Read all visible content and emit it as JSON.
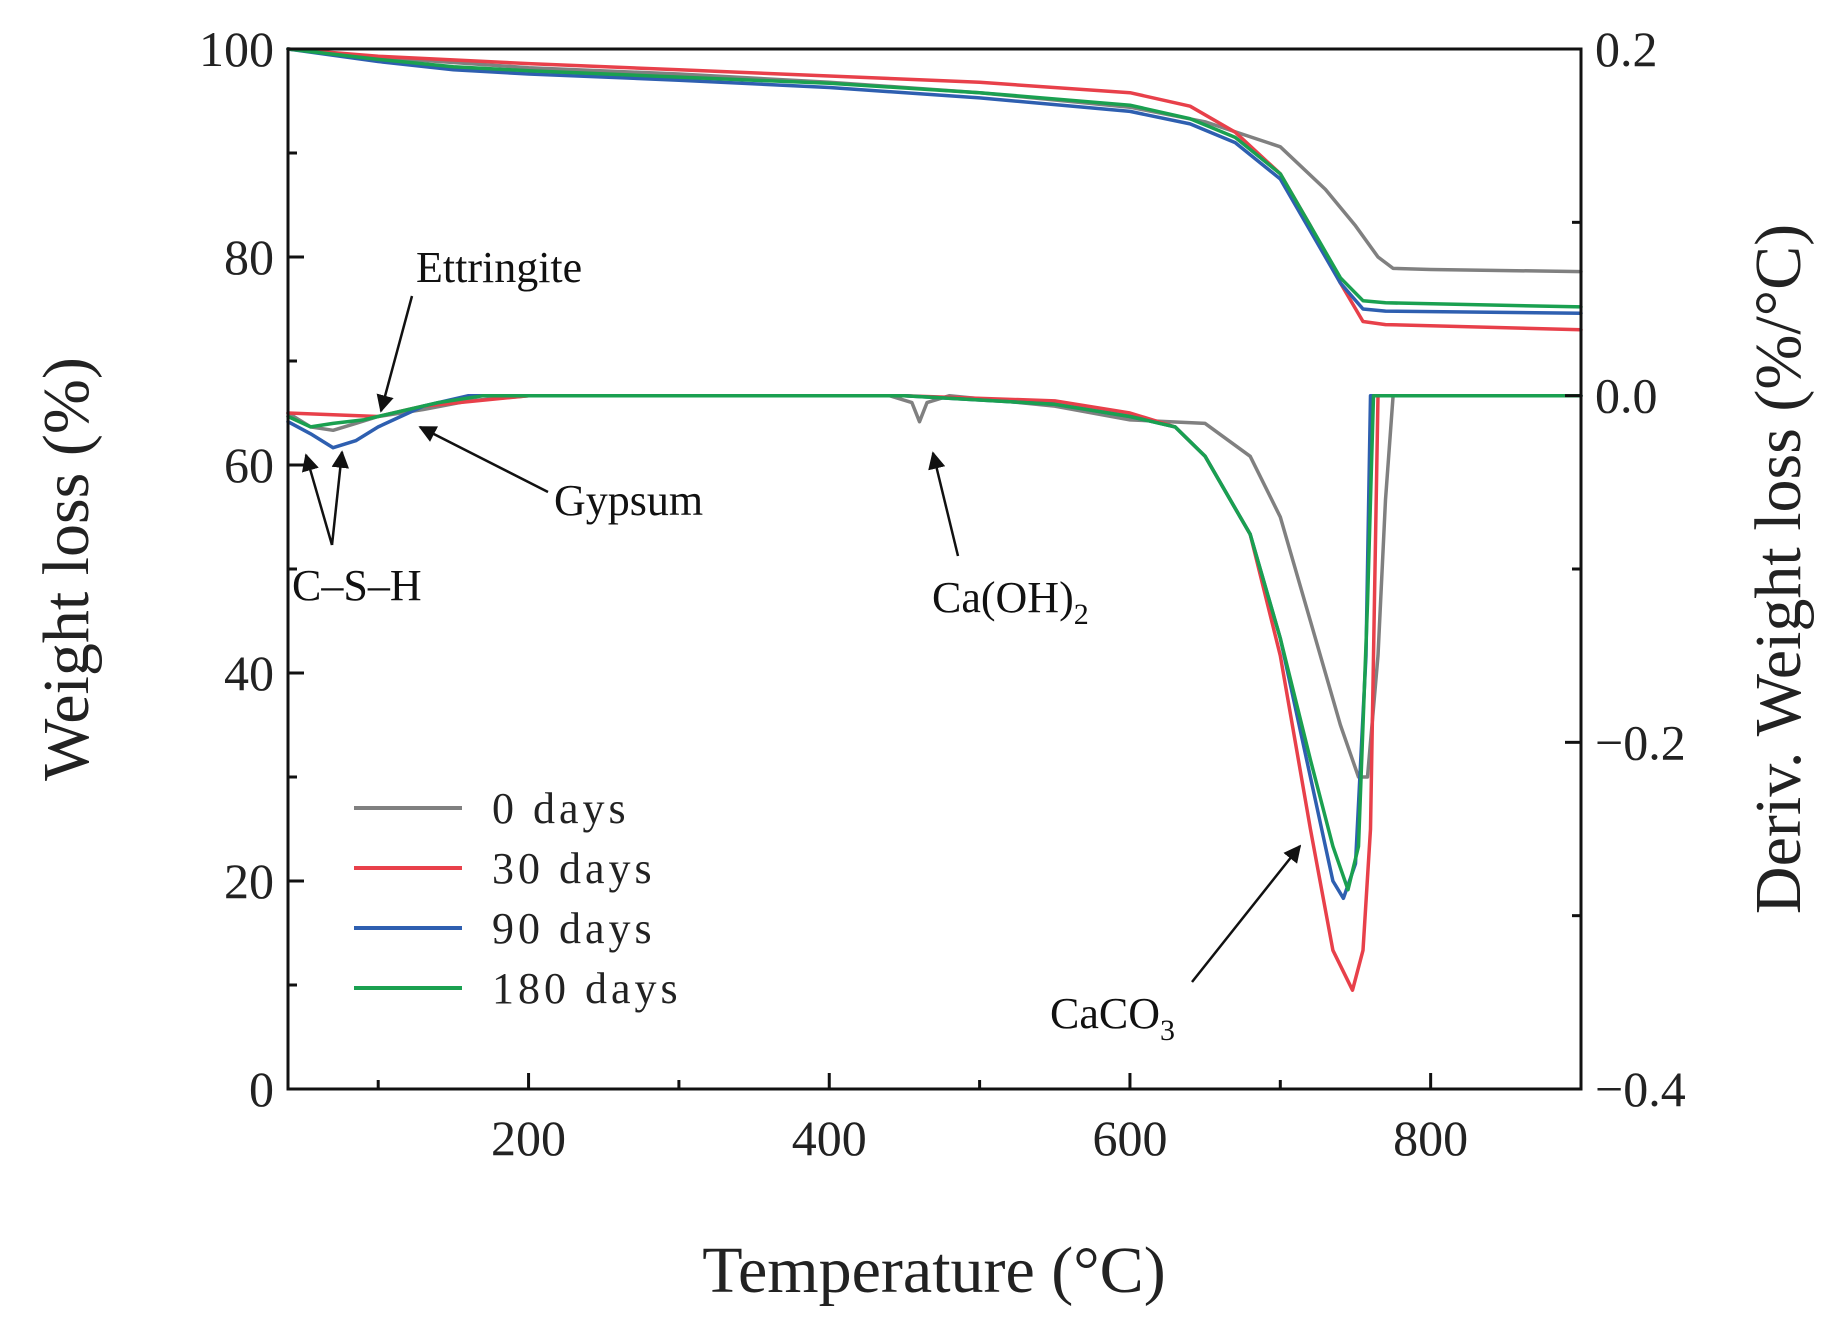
{
  "chart_data": {
    "type": "line",
    "title": "",
    "xlabel": "Temperature (°C)",
    "ylabel": "Weight loss (%)",
    "y2label": "Deriv. Weight loss (%/°C)",
    "xlim": [
      40,
      900
    ],
    "ylim": [
      0,
      100
    ],
    "y2lim": [
      -0.4,
      0.2
    ],
    "x_ticks": [
      200,
      400,
      600,
      800
    ],
    "x_tick_labels": [
      "200",
      "400",
      "600",
      "800"
    ],
    "x_minor_ticks": [
      100,
      300,
      500,
      700
    ],
    "y_ticks": [
      0,
      20,
      40,
      60,
      80,
      100
    ],
    "y_tick_labels": [
      "0",
      "20",
      "40",
      "60",
      "80",
      "100"
    ],
    "y2_ticks": [
      -0.4,
      -0.2,
      0.0,
      0.2
    ],
    "y2_tick_labels": [
      "−0.4",
      "−0.2",
      "0.0",
      "0.2"
    ],
    "y2_minor_ticks": [
      -0.3,
      -0.1,
      0.1
    ],
    "legend_position": "bottom-left",
    "series": [
      {
        "name": "0 days",
        "color": "#808080",
        "tg": [
          [
            40,
            100
          ],
          [
            100,
            99.2
          ],
          [
            200,
            98.2
          ],
          [
            300,
            97.6
          ],
          [
            400,
            96.8
          ],
          [
            500,
            95.8
          ],
          [
            600,
            94.4
          ],
          [
            650,
            93.0
          ],
          [
            700,
            90.6
          ],
          [
            730,
            86.5
          ],
          [
            750,
            83.0
          ],
          [
            765,
            80.0
          ],
          [
            775,
            78.9
          ],
          [
            800,
            78.8
          ],
          [
            900,
            78.6
          ]
        ],
        "dtg": [
          [
            40,
            -0.01
          ],
          [
            55,
            -0.018
          ],
          [
            70,
            -0.02
          ],
          [
            85,
            -0.016
          ],
          [
            100,
            -0.012
          ],
          [
            130,
            -0.008
          ],
          [
            160,
            -0.003
          ],
          [
            200,
            0.0
          ],
          [
            300,
            0.0
          ],
          [
            440,
            0.0
          ],
          [
            455,
            -0.004
          ],
          [
            460,
            -0.015
          ],
          [
            465,
            -0.004
          ],
          [
            480,
            0.0
          ],
          [
            550,
            -0.006
          ],
          [
            600,
            -0.014
          ],
          [
            650,
            -0.016
          ],
          [
            680,
            -0.035
          ],
          [
            700,
            -0.07
          ],
          [
            720,
            -0.13
          ],
          [
            740,
            -0.19
          ],
          [
            752,
            -0.22
          ],
          [
            758,
            -0.22
          ],
          [
            765,
            -0.15
          ],
          [
            770,
            -0.06
          ],
          [
            775,
            0.0
          ],
          [
            900,
            0.0
          ]
        ]
      },
      {
        "name": "30 days",
        "color": "#e8404a",
        "tg": [
          [
            40,
            100
          ],
          [
            100,
            99.3
          ],
          [
            200,
            98.6
          ],
          [
            300,
            98.0
          ],
          [
            400,
            97.4
          ],
          [
            500,
            96.8
          ],
          [
            600,
            95.8
          ],
          [
            640,
            94.5
          ],
          [
            670,
            92.0
          ],
          [
            700,
            88.0
          ],
          [
            720,
            83.0
          ],
          [
            740,
            77.5
          ],
          [
            755,
            73.8
          ],
          [
            770,
            73.5
          ],
          [
            900,
            73.0
          ]
        ],
        "dtg": [
          [
            40,
            -0.01
          ],
          [
            100,
            -0.012
          ],
          [
            130,
            -0.006
          ],
          [
            200,
            0.0
          ],
          [
            300,
            0.0
          ],
          [
            450,
            0.0
          ],
          [
            550,
            -0.003
          ],
          [
            600,
            -0.01
          ],
          [
            630,
            -0.018
          ],
          [
            650,
            -0.035
          ],
          [
            680,
            -0.08
          ],
          [
            700,
            -0.15
          ],
          [
            720,
            -0.25
          ],
          [
            735,
            -0.32
          ],
          [
            748,
            -0.343
          ],
          [
            755,
            -0.32
          ],
          [
            760,
            -0.25
          ],
          [
            763,
            -0.1
          ],
          [
            765,
            0.0
          ],
          [
            900,
            0.0
          ]
        ]
      },
      {
        "name": "90 days",
        "color": "#2e5fb0",
        "tg": [
          [
            40,
            100
          ],
          [
            100,
            98.8
          ],
          [
            150,
            98.0
          ],
          [
            200,
            97.6
          ],
          [
            300,
            97.0
          ],
          [
            400,
            96.3
          ],
          [
            500,
            95.3
          ],
          [
            600,
            94.0
          ],
          [
            640,
            92.8
          ],
          [
            670,
            91.0
          ],
          [
            700,
            87.5
          ],
          [
            720,
            82.5
          ],
          [
            740,
            77.5
          ],
          [
            755,
            75.0
          ],
          [
            770,
            74.8
          ],
          [
            900,
            74.6
          ]
        ],
        "dtg": [
          [
            40,
            -0.015
          ],
          [
            55,
            -0.022
          ],
          [
            70,
            -0.03
          ],
          [
            85,
            -0.026
          ],
          [
            100,
            -0.018
          ],
          [
            130,
            -0.006
          ],
          [
            160,
            0.0
          ],
          [
            300,
            0.0
          ],
          [
            450,
            0.0
          ],
          [
            550,
            -0.005
          ],
          [
            600,
            -0.012
          ],
          [
            630,
            -0.018
          ],
          [
            650,
            -0.035
          ],
          [
            680,
            -0.08
          ],
          [
            700,
            -0.14
          ],
          [
            720,
            -0.22
          ],
          [
            735,
            -0.28
          ],
          [
            742,
            -0.29
          ],
          [
            750,
            -0.27
          ],
          [
            757,
            -0.15
          ],
          [
            760,
            0.0
          ],
          [
            900,
            0.0
          ]
        ]
      },
      {
        "name": "180 days",
        "color": "#1aa050",
        "tg": [
          [
            40,
            100
          ],
          [
            100,
            99.0
          ],
          [
            150,
            98.3
          ],
          [
            200,
            97.9
          ],
          [
            300,
            97.3
          ],
          [
            400,
            96.7
          ],
          [
            500,
            95.8
          ],
          [
            600,
            94.6
          ],
          [
            640,
            93.3
          ],
          [
            670,
            91.5
          ],
          [
            700,
            88.0
          ],
          [
            720,
            83.0
          ],
          [
            740,
            78.0
          ],
          [
            755,
            75.8
          ],
          [
            770,
            75.6
          ],
          [
            900,
            75.2
          ]
        ],
        "dtg": [
          [
            40,
            -0.012
          ],
          [
            55,
            -0.018
          ],
          [
            70,
            -0.016
          ],
          [
            90,
            -0.014
          ],
          [
            110,
            -0.01
          ],
          [
            140,
            -0.004
          ],
          [
            170,
            0.0
          ],
          [
            300,
            0.0
          ],
          [
            450,
            0.0
          ],
          [
            550,
            -0.005
          ],
          [
            600,
            -0.012
          ],
          [
            630,
            -0.018
          ],
          [
            650,
            -0.035
          ],
          [
            680,
            -0.08
          ],
          [
            700,
            -0.14
          ],
          [
            720,
            -0.21
          ],
          [
            735,
            -0.26
          ],
          [
            745,
            -0.285
          ],
          [
            752,
            -0.26
          ],
          [
            758,
            -0.12
          ],
          [
            762,
            0.0
          ],
          [
            900,
            0.0
          ]
        ]
      }
    ],
    "annotations": [
      {
        "text": "Ettringite",
        "x": 105,
        "y2": 0.0
      },
      {
        "text": "Gypsum",
        "x": 130,
        "y2": -0.008
      },
      {
        "text": "C–S–H",
        "x": 55,
        "y2": -0.02
      },
      {
        "text": "Ca(OH)",
        "sub": "2",
        "x": 462,
        "y2": -0.017
      },
      {
        "text": "CaCO",
        "sub": "3",
        "x": 722,
        "y2": -0.26
      }
    ]
  }
}
